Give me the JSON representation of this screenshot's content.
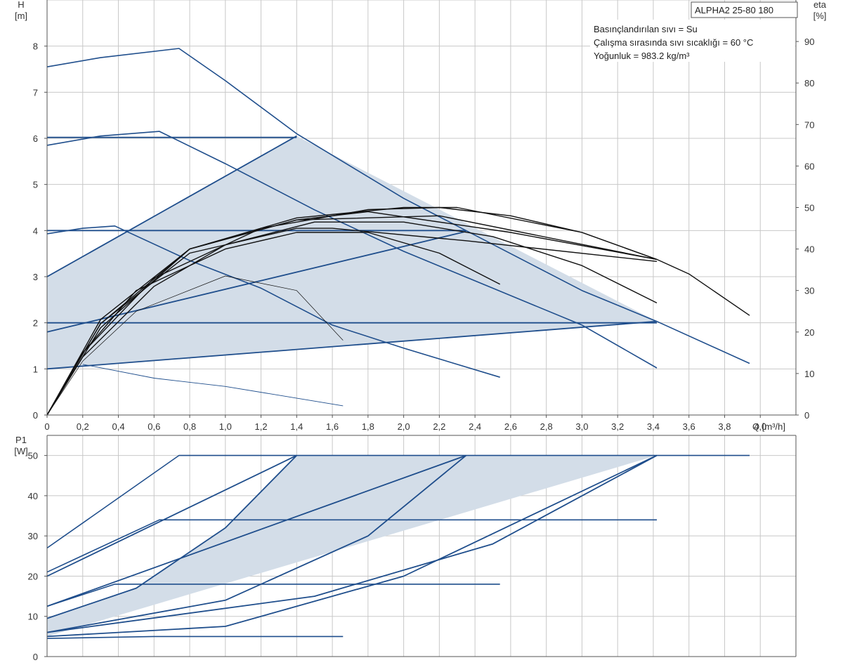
{
  "model_label": "ALPHA2 25-80 180",
  "info_lines": [
    "Basınçlandırılan sıvı = Su",
    "Çalışma sırasında sıvı sıcaklığı = 60 °C",
    "Yoğunluk = 983.2 kg/m³"
  ],
  "colors": {
    "curve": "#1f4e8c",
    "efficiency": "#111111",
    "area_fill": "#d3dde8",
    "grid": "#c8c8c8",
    "frame": "#555555"
  },
  "chart_data": [
    {
      "type": "line",
      "name": "head",
      "y_axis_label": [
        "H",
        "[m]"
      ],
      "y2_axis_label": [
        "eta",
        "[%]"
      ],
      "x_axis_label": "Q [m³/h]",
      "xlim": [
        0,
        4.2
      ],
      "ylim": [
        0,
        9
      ],
      "y2lim": [
        0,
        100
      ],
      "x_ticks": [
        "0",
        "0,2",
        "0,4",
        "0,6",
        "0,8",
        "1,0",
        "1,2",
        "1,4",
        "1,6",
        "1,8",
        "2,0",
        "2,2",
        "2,4",
        "2,6",
        "2,8",
        "3,0",
        "3,2",
        "3,4",
        "3,6",
        "3,8",
        "4,0"
      ],
      "y_ticks": [
        "0",
        "1",
        "2",
        "3",
        "4",
        "5",
        "6",
        "7",
        "8"
      ],
      "y2_ticks": [
        "0",
        "10",
        "20",
        "30",
        "40",
        "50",
        "60",
        "70",
        "80",
        "90"
      ],
      "grid": true,
      "operating_area": [
        [
          0,
          1.0
        ],
        [
          0,
          3.0
        ],
        [
          1.4,
          6.05
        ],
        [
          3.42,
          2.03
        ]
      ],
      "curves": [
        {
          "role": "pump",
          "points": [
            [
              0,
              7.55
            ],
            [
              0.3,
              7.75
            ],
            [
              0.74,
              7.95
            ],
            [
              1.0,
              7.25
            ],
            [
              1.4,
              6.1
            ],
            [
              2.0,
              4.7
            ],
            [
              2.6,
              3.5
            ],
            [
              3.0,
              2.7
            ],
            [
              3.42,
              2.03
            ],
            [
              3.94,
              1.12
            ]
          ]
        },
        {
          "role": "pump",
          "points": [
            [
              0,
              5.85
            ],
            [
              0.3,
              6.05
            ],
            [
              0.63,
              6.15
            ],
            [
              1.0,
              5.45
            ],
            [
              1.5,
              4.45
            ],
            [
              2.0,
              3.55
            ],
            [
              2.5,
              2.75
            ],
            [
              3.0,
              1.95
            ],
            [
              3.42,
              1.02
            ]
          ]
        },
        {
          "role": "pump",
          "points": [
            [
              0,
              3.93
            ],
            [
              0.2,
              4.05
            ],
            [
              0.38,
              4.1
            ],
            [
              0.8,
              3.35
            ],
            [
              1.2,
              2.75
            ],
            [
              1.6,
              1.95
            ],
            [
              2.0,
              1.45
            ],
            [
              2.54,
              0.82
            ]
          ]
        },
        {
          "role": "pump",
          "points": [
            [
              0.2,
              1.1
            ],
            [
              0.6,
              0.8
            ],
            [
              1.0,
              0.62
            ],
            [
              1.66,
              0.2
            ]
          ]
        },
        {
          "role": "constant",
          "points": [
            [
              0,
              6.02
            ],
            [
              1.4,
              6.02
            ]
          ]
        },
        {
          "role": "constant",
          "points": [
            [
              0,
              4.0
            ],
            [
              2.35,
              4.0
            ]
          ]
        },
        {
          "role": "constant",
          "points": [
            [
              0,
              2.0
            ],
            [
              3.42,
              2.0
            ]
          ]
        },
        {
          "role": "proportional",
          "points": [
            [
              0,
              3.0
            ],
            [
              1.4,
              6.05
            ]
          ]
        },
        {
          "role": "proportional",
          "points": [
            [
              0,
              1.8
            ],
            [
              2.35,
              3.98
            ]
          ]
        },
        {
          "role": "proportional",
          "points": [
            [
              0,
              1.0
            ],
            [
              3.42,
              2.03
            ]
          ]
        }
      ],
      "efficiency_curves": [
        {
          "points": [
            [
              0,
              0
            ],
            [
              0.2,
              15
            ],
            [
              0.5,
              30
            ],
            [
              1.0,
              40
            ],
            [
              1.4,
              44
            ],
            [
              1.8,
              44
            ],
            [
              2.2,
              39
            ],
            [
              2.54,
              31.5
            ]
          ]
        },
        {
          "points": [
            [
              0,
              0
            ],
            [
              0.2,
              14
            ],
            [
              0.6,
              31
            ],
            [
              1.0,
              41
            ],
            [
              1.5,
              46.5
            ],
            [
              2.0,
              46.5
            ],
            [
              2.5,
              43
            ],
            [
              3.0,
              36
            ],
            [
              3.42,
              27
            ]
          ]
        },
        {
          "points": [
            [
              0,
              0
            ],
            [
              0.2,
              15
            ],
            [
              0.6,
              33
            ],
            [
              1.2,
              45
            ],
            [
              1.8,
              49.5
            ],
            [
              2.2,
              50
            ],
            [
              2.6,
              48
            ],
            [
              3.0,
              44
            ],
            [
              3.42,
              37.5
            ],
            [
              3.6,
              34
            ],
            [
              3.94,
              24
            ]
          ]
        },
        {
          "points": [
            [
              0,
              0
            ],
            [
              0.3,
              22
            ],
            [
              0.8,
              39
            ],
            [
              1.4,
              45
            ],
            [
              1.6,
              45
            ],
            [
              2.35,
              42
            ],
            [
              3.42,
              37
            ]
          ]
        },
        {
          "points": [
            [
              0,
              0
            ],
            [
              0.3,
              21
            ],
            [
              0.8,
              40
            ],
            [
              1.4,
              47
            ],
            [
              2.2,
              48
            ],
            [
              3.42,
              37.5
            ]
          ]
        },
        {
          "points": [
            [
              0,
              0
            ],
            [
              0.3,
              23
            ],
            [
              0.8,
              40
            ],
            [
              1.4,
              47
            ],
            [
              1.8,
              49
            ],
            [
              2.6,
              44
            ],
            [
              3.42,
              37.5
            ]
          ]
        },
        {
          "points": [
            [
              0,
              0
            ],
            [
              0.3,
              22
            ],
            [
              0.8,
              40
            ],
            [
              1.4,
              47.5
            ],
            [
              2.0,
              50
            ],
            [
              2.3,
              50
            ],
            [
              3.0,
              44
            ],
            [
              3.42,
              37.5
            ]
          ]
        },
        {
          "points": [
            [
              0,
              0
            ],
            [
              0.2,
              13
            ],
            [
              0.5,
              25
            ],
            [
              1.0,
              33.5
            ],
            [
              1.4,
              30
            ],
            [
              1.66,
              18
            ]
          ],
          "thin": true
        }
      ]
    },
    {
      "type": "line",
      "name": "power",
      "y_axis_label": [
        "P1",
        "[W]"
      ],
      "xlim": [
        0,
        4.2
      ],
      "ylim": [
        0,
        55
      ],
      "y_ticks": [
        "0",
        "10",
        "20",
        "30",
        "40",
        "50"
      ],
      "grid": true,
      "operating_area": [
        [
          0,
          5.0
        ],
        [
          0,
          9.5
        ],
        [
          0.5,
          17
        ],
        [
          1.0,
          32
        ],
        [
          1.4,
          50
        ],
        [
          3.42,
          50
        ]
      ],
      "curves": [
        {
          "role": "pump",
          "points": [
            [
              0,
              27
            ],
            [
              0.74,
              50
            ],
            [
              3.94,
              50
            ]
          ]
        },
        {
          "role": "pump",
          "points": [
            [
              0,
              21
            ],
            [
              0.63,
              34
            ],
            [
              3.42,
              34
            ]
          ]
        },
        {
          "role": "pump",
          "points": [
            [
              0,
              12.5
            ],
            [
              0.38,
              18
            ],
            [
              2.54,
              18
            ]
          ]
        },
        {
          "role": "pump",
          "points": [
            [
              0,
              4.5
            ],
            [
              0.6,
              5.0
            ],
            [
              1.66,
              5.0
            ]
          ]
        },
        {
          "role": "constant",
          "points": [
            [
              0,
              9.5
            ],
            [
              0.5,
              17
            ],
            [
              1.0,
              32
            ],
            [
              1.4,
              50
            ]
          ]
        },
        {
          "role": "constant",
          "points": [
            [
              0,
              6.0
            ],
            [
              1.0,
              14
            ],
            [
              1.8,
              30
            ],
            [
              2.35,
              50
            ]
          ]
        },
        {
          "role": "constant",
          "points": [
            [
              0,
              5.0
            ],
            [
              1.0,
              7.5
            ],
            [
              2.0,
              20
            ],
            [
              3.42,
              50
            ]
          ]
        },
        {
          "role": "proportional",
          "points": [
            [
              0,
              20
            ],
            [
              1.4,
              50
            ]
          ]
        },
        {
          "role": "proportional",
          "points": [
            [
              0,
              12.5
            ],
            [
              2.35,
              50
            ]
          ]
        },
        {
          "role": "proportional",
          "points": [
            [
              0,
              6.0
            ],
            [
              1.5,
              15
            ],
            [
              2.5,
              28
            ],
            [
              3.42,
              50
            ]
          ]
        }
      ]
    }
  ]
}
